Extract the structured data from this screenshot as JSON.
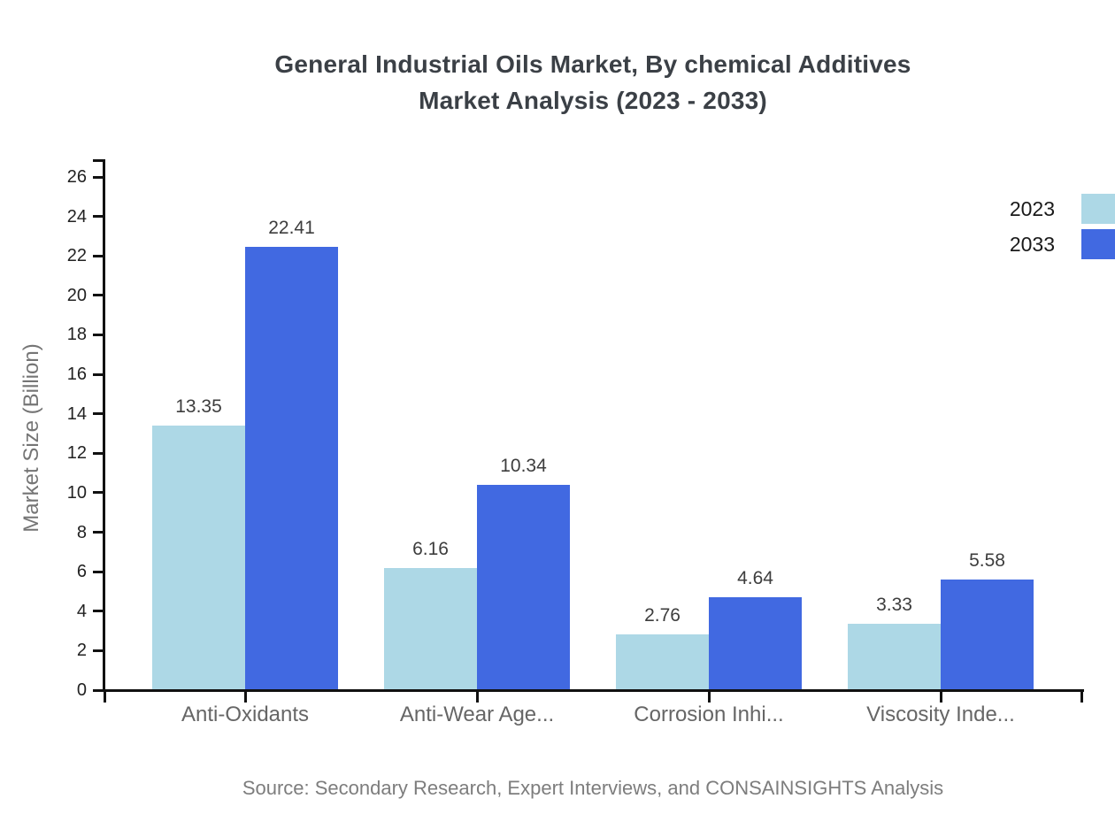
{
  "title": {
    "line1": "General Industrial Oils Market, By chemical Additives",
    "line2": "Market Analysis (2023 - 2033)"
  },
  "source": "Source: Secondary Research, Expert Interviews, and CONSAINSIGHTS Analysis",
  "chart_data": {
    "type": "bar",
    "title": "General Industrial Oils Market, By chemical Additives Market Analysis (2023 - 2033)",
    "categories": [
      "Anti-Oxidants",
      "Anti-Wear Age...",
      "Corrosion Inhi...",
      "Viscosity Inde..."
    ],
    "series": [
      {
        "name": "2023",
        "color": "#ADD8E6",
        "values": [
          13.35,
          6.16,
          2.76,
          3.33
        ]
      },
      {
        "name": "2033",
        "color": "#4169E1",
        "values": [
          22.41,
          10.34,
          4.64,
          5.58
        ]
      }
    ],
    "xlabel": "",
    "ylabel": "Market Size (Billion)",
    "ylim": [
      0,
      26
    ],
    "ytick_step": 2,
    "grid": false,
    "legend_position": "top-right",
    "axis_color": "#111111",
    "value_label_color": "#3d3d3d",
    "category_label_color": "#666666"
  }
}
